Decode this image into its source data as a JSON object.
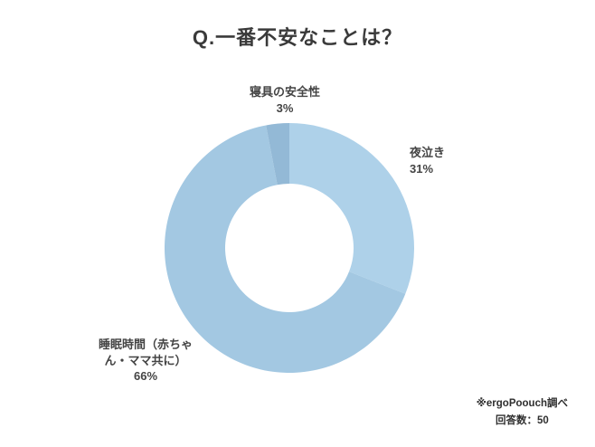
{
  "title": "Q.一番不安なことは？",
  "chart_data": {
    "type": "pie",
    "donut": true,
    "title": "Q.一番不安なことは？",
    "unit": "%",
    "start_angle_deg": 0,
    "direction": "clockwise",
    "legend_position": "none",
    "hole_color": "#ffffff",
    "segments": [
      {
        "label": "夜泣き",
        "value": 31,
        "pct": "31%",
        "color": "#aed1e9"
      },
      {
        "label": "睡眠時間（赤ちゃん・ママ共に）",
        "value": 66,
        "pct": "66%",
        "color": "#a3c8e2"
      },
      {
        "label": "寝具の安全性",
        "value": 3,
        "pct": "3%",
        "color": "#93b9d6"
      }
    ]
  },
  "footer": {
    "source": "※ergoPoouch調べ",
    "responses": "回答数：50"
  }
}
